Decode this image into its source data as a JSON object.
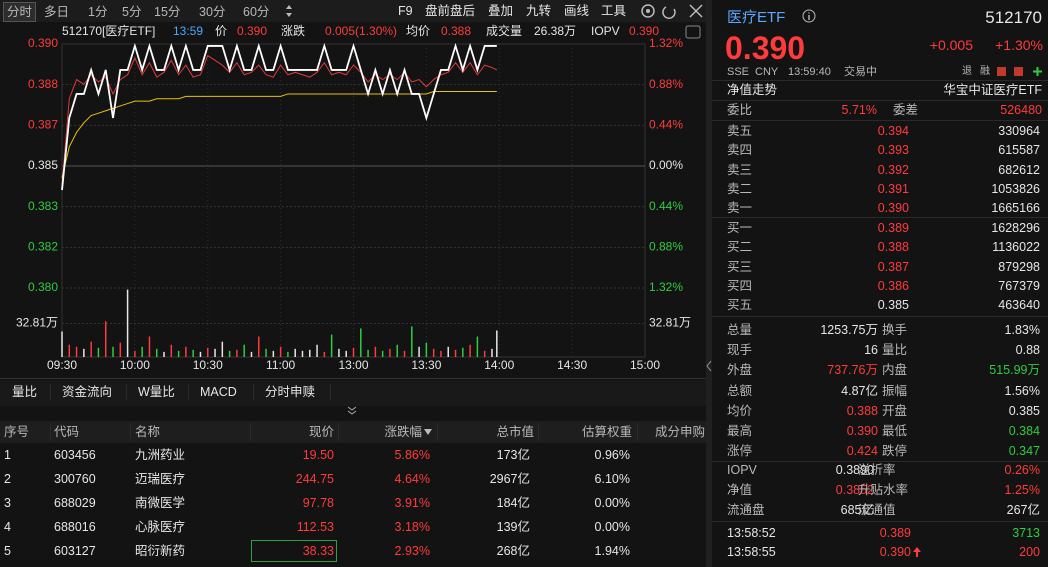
{
  "toolbar": {
    "tabs": [
      "分时",
      "多日",
      "1分",
      "5分",
      "15分",
      "30分",
      "60分"
    ],
    "tools": [
      "F9",
      "盘前盘后",
      "叠加",
      "九转",
      "画线",
      "工具"
    ]
  },
  "chart_data": {
    "type": "line",
    "info": {
      "code_name": "512170[医疗ETF]",
      "time": "13:59",
      "price": "0.390",
      "change_label": "涨跌",
      "change": "0.005(1.30%)",
      "avg": "0.388",
      "volume_label": "成交量",
      "volume": "26.38万",
      "iopv": "0.390"
    },
    "xlim": [
      0,
      240
    ],
    "xticks": [
      {
        "value": 0,
        "label": "09:30"
      },
      {
        "value": 30,
        "label": "10:00"
      },
      {
        "value": 60,
        "label": "10:30"
      },
      {
        "value": 90,
        "label": "11:00"
      },
      {
        "value": 120,
        "label": "13:00"
      },
      {
        "value": 150,
        "label": "13:30"
      },
      {
        "value": 180,
        "label": "14:00"
      },
      {
        "value": 210,
        "label": "14:30"
      },
      {
        "value": 240,
        "label": "15:00"
      }
    ],
    "ylim": [
      0.37992,
      0.39008
    ],
    "yticks": [
      {
        "value": 0.39008,
        "label": "0.390"
      },
      {
        "value": 0.38839,
        "label": "0.388"
      },
      {
        "value": 0.38669,
        "label": "0.387"
      },
      {
        "value": 0.385,
        "label": "0.385"
      },
      {
        "value": 0.38331,
        "label": "0.383"
      },
      {
        "value": 0.38161,
        "label": "0.382"
      },
      {
        "value": 0.37992,
        "label": "0.380"
      }
    ],
    "y2lim": [
      -1.32,
      1.32
    ],
    "y2ticks": [
      {
        "value": 1.32,
        "label": "1.32%"
      },
      {
        "value": 0.88,
        "label": "0.88%"
      },
      {
        "value": 0.44,
        "label": "0.44%"
      },
      {
        "value": 0,
        "label": "0.00%"
      },
      {
        "value": -0.44,
        "label": "0.44%"
      },
      {
        "value": -0.88,
        "label": "0.88%"
      },
      {
        "value": -1.32,
        "label": "1.32%"
      }
    ],
    "x": [
      0,
      3,
      6,
      9,
      12,
      15,
      18,
      21,
      24,
      27,
      30,
      33,
      36,
      39,
      42,
      45,
      48,
      51,
      54,
      57,
      60,
      63,
      66,
      69,
      72,
      75,
      78,
      81,
      84,
      87,
      90,
      93,
      96,
      99,
      102,
      105,
      108,
      111,
      114,
      117,
      120,
      123,
      126,
      129,
      132,
      135,
      138,
      141,
      144,
      147,
      150,
      153,
      156,
      159,
      162,
      165,
      168,
      171,
      174,
      177,
      179
    ],
    "series": [
      {
        "name": "IOPV",
        "color": "#e03a3a",
        "values": [
          0.3842,
          0.3878,
          0.3886,
          0.3884,
          0.3888,
          0.3885,
          0.3887,
          0.388,
          0.3886,
          0.3888,
          0.3895,
          0.3888,
          0.3893,
          0.3887,
          0.3889,
          0.3894,
          0.3888,
          0.3892,
          0.3887,
          0.3888,
          0.3896,
          0.3894,
          0.3892,
          0.3889,
          0.3893,
          0.3888,
          0.3889,
          0.3892,
          0.3888,
          0.3887,
          0.3892,
          0.3888,
          0.3889,
          0.3888,
          0.3887,
          0.3889,
          0.3893,
          0.3888,
          0.3889,
          0.3888,
          0.3892,
          0.3889,
          0.3885,
          0.3888,
          0.3886,
          0.3888,
          0.3886,
          0.3889,
          0.3885,
          0.3886,
          0.3883,
          0.3886,
          0.3888,
          0.3889,
          0.3893,
          0.3889,
          0.3893,
          0.3888,
          0.3892,
          0.3891,
          0.389
        ]
      },
      {
        "name": "均价",
        "color": "#e8c20a",
        "values": [
          0.3845,
          0.3858,
          0.3864,
          0.3868,
          0.3871,
          0.3872,
          0.3873,
          0.3874,
          0.3875,
          0.3876,
          0.3877,
          0.3877,
          0.3877,
          0.3878,
          0.3878,
          0.3878,
          0.3878,
          0.3879,
          0.3879,
          0.3879,
          0.3879,
          0.3879,
          0.3879,
          0.3879,
          0.3879,
          0.3879,
          0.3879,
          0.3879,
          0.3879,
          0.3879,
          0.3879,
          0.388,
          0.388,
          0.388,
          0.388,
          0.388,
          0.388,
          0.388,
          0.388,
          0.388,
          0.388,
          0.388,
          0.388,
          0.388,
          0.388,
          0.388,
          0.388,
          0.388,
          0.388,
          0.388,
          0.388,
          0.3881,
          0.3881,
          0.3881,
          0.3881,
          0.3881,
          0.3881,
          0.3881,
          0.3881,
          0.3881,
          0.3881
        ]
      },
      {
        "name": "价",
        "color": "#ffffff",
        "values": [
          0.384,
          0.387,
          0.388,
          0.388,
          0.389,
          0.388,
          0.389,
          0.387,
          0.389,
          0.389,
          0.39,
          0.389,
          0.39,
          0.389,
          0.389,
          0.39,
          0.389,
          0.39,
          0.389,
          0.389,
          0.39,
          0.39,
          0.39,
          0.389,
          0.39,
          0.389,
          0.389,
          0.39,
          0.389,
          0.389,
          0.39,
          0.389,
          0.389,
          0.389,
          0.389,
          0.389,
          0.39,
          0.389,
          0.389,
          0.389,
          0.39,
          0.389,
          0.388,
          0.389,
          0.388,
          0.389,
          0.388,
          0.389,
          0.388,
          0.388,
          0.387,
          0.388,
          0.389,
          0.389,
          0.39,
          0.389,
          0.39,
          0.389,
          0.39,
          0.39,
          0.39
        ]
      }
    ],
    "volume": {
      "ylim": [
        0,
        65.62
      ],
      "yticks": [
        {
          "value": 32.81,
          "label": "32.81万"
        }
      ],
      "values": [
        25,
        12,
        10,
        8,
        15,
        9,
        35,
        10,
        14,
        66,
        6,
        10,
        20,
        8,
        5,
        12,
        6,
        10,
        7,
        5,
        9,
        8,
        15,
        6,
        7,
        12,
        5,
        20,
        8,
        6,
        10,
        5,
        8,
        6,
        7,
        12,
        5,
        22,
        8,
        6,
        9,
        28,
        7,
        10,
        6,
        8,
        12,
        6,
        30,
        10,
        14,
        8,
        6,
        10,
        7,
        9,
        12,
        20,
        6,
        8,
        26
      ]
    }
  },
  "bottom_tabs": [
    "量比",
    "资金流向",
    "W量比",
    "MACD",
    "分时申赎"
  ],
  "table": {
    "header": [
      "序号",
      "代码",
      "名称",
      "现价",
      "涨跌幅",
      "总市值",
      "估算权重",
      "成分申购"
    ],
    "rows": [
      [
        "1",
        "603456",
        "九洲药业",
        "19.50",
        "5.86%",
        "173亿",
        "0.96%"
      ],
      [
        "2",
        "300760",
        "迈瑞医疗",
        "244.75",
        "4.64%",
        "2967亿",
        "6.10%"
      ],
      [
        "3",
        "688029",
        "南微医学",
        "97.78",
        "3.91%",
        "184亿",
        "0.00%"
      ],
      [
        "4",
        "688016",
        "心脉医疗",
        "112.53",
        "3.18%",
        "139亿",
        "0.00%"
      ],
      [
        "5",
        "603127",
        "昭衍新药",
        "38.33",
        "2.93%",
        "268亿",
        "1.94%"
      ]
    ]
  },
  "quote": {
    "name": "医疗ETF",
    "code": "512170",
    "price": "0.390",
    "change": "+0.005",
    "change_pct": "+1.30%",
    "meta": [
      "SSE",
      "CNY",
      "13:59:40",
      "交易中"
    ],
    "badges": [
      "退",
      "融"
    ]
  },
  "nav": {
    "label": "净值走势",
    "fund": "华宝中证医疗ETF"
  },
  "order_book": {
    "ratio_label": "委比",
    "ratio": "5.71%",
    "diff_label": "委差",
    "diff": "526480",
    "asks": [
      [
        "卖五",
        "0.394",
        "330964"
      ],
      [
        "卖四",
        "0.393",
        "615587"
      ],
      [
        "卖三",
        "0.392",
        "682612"
      ],
      [
        "卖二",
        "0.391",
        "1053826"
      ],
      [
        "卖一",
        "0.390",
        "1665166"
      ]
    ],
    "bids": [
      [
        "买一",
        "0.389",
        "1628296"
      ],
      [
        "买二",
        "0.388",
        "1136022"
      ],
      [
        "买三",
        "0.387",
        "879298"
      ],
      [
        "买四",
        "0.386",
        "767379"
      ],
      [
        "买五",
        "0.385",
        "463640"
      ]
    ]
  },
  "stats": [
    [
      "总量",
      "1253.75万",
      "换手",
      "1.83%"
    ],
    [
      "现手",
      "16",
      "量比",
      "0.88"
    ],
    [
      "外盘",
      "737.76万",
      "内盘",
      "515.99万"
    ],
    [
      "总额",
      "4.87亿",
      "振幅",
      "1.56%"
    ],
    [
      "均价",
      "0.388",
      "开盘",
      "0.385"
    ],
    [
      "最高",
      "0.390",
      "最低",
      "0.384"
    ],
    [
      "涨停",
      "0.424",
      "跌停",
      "0.347"
    ]
  ],
  "iopv": [
    [
      "IOPV",
      "0.3890",
      "溢折率",
      "0.26%"
    ],
    [
      "净值",
      "0.3852",
      "升贴水率",
      "1.25%"
    ],
    [
      "流通盘",
      "685亿",
      "流通值",
      "267亿"
    ]
  ],
  "trades": [
    [
      "13:58:52",
      "0.389",
      "3713"
    ],
    [
      "13:58:55",
      "0.390",
      "200"
    ]
  ]
}
